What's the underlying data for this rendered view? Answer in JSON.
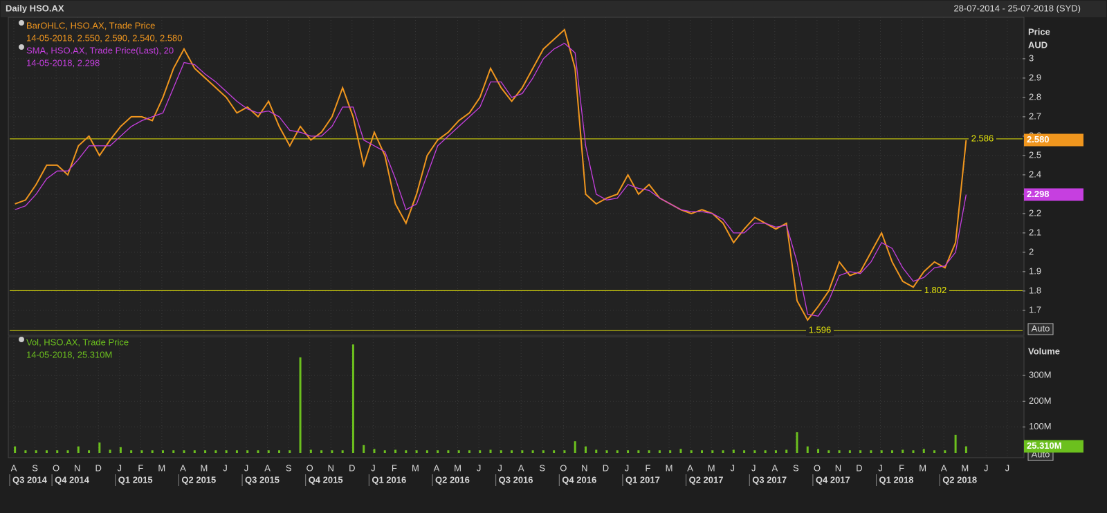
{
  "header": {
    "title": "Daily HSO.AX",
    "range": "28-07-2014 - 25-07-2018 (SYD)"
  },
  "chart_data": [
    {
      "type": "line",
      "y_title": "Price",
      "y_unit": "AUD",
      "grid": true,
      "categories": [
        "A",
        null,
        "S",
        null,
        "O",
        null,
        "N",
        null,
        "D",
        null,
        "J",
        null,
        "F",
        null,
        "M",
        null,
        "A",
        null,
        "M",
        null,
        "J",
        null,
        "J",
        null,
        "A",
        null,
        "S",
        null,
        "O",
        null,
        "N",
        null,
        "D",
        null,
        "J",
        null,
        "F",
        null,
        "M",
        null,
        "A",
        null,
        "M",
        null,
        "J",
        null,
        "J",
        null,
        "A",
        null,
        "S",
        null,
        "O",
        null,
        "N",
        null,
        "D",
        null,
        "J",
        null,
        "F",
        null,
        "M",
        null,
        "A",
        null,
        "M",
        null,
        "J",
        null,
        "J",
        null,
        "A",
        null,
        "S",
        null,
        "O",
        null,
        "N",
        null,
        "D",
        null,
        "J",
        null,
        "F",
        null,
        "M",
        null,
        "A",
        null,
        "M",
        null,
        "J",
        null,
        "J",
        null
      ],
      "quarters": [
        "Q3 2014",
        "Q4 2014",
        "Q1 2015",
        "Q2 2015",
        "Q3 2015",
        "Q4 2015",
        "Q1 2016",
        "Q2 2016",
        "Q3 2016",
        "Q4 2016",
        "Q1 2017",
        "Q2 2017",
        "Q3 2017",
        "Q4 2017",
        "Q1 2018",
        "Q2 2018"
      ],
      "ylim": [
        1.571,
        3.214
      ],
      "yticks": [
        1.7,
        1.8,
        1.9,
        2,
        2.1,
        2.2,
        2.3,
        2.4,
        2.5,
        2.6,
        2.7,
        2.8,
        2.9,
        3
      ],
      "levels": [
        2.586,
        1.802,
        1.596
      ],
      "level_color": "#e6e60a",
      "series": [
        {
          "name": "BarOHLC, HSO.AX, Trade Price",
          "detail": "14-05-2018, 2.550, 2.590, 2.540, 2.580",
          "color": "#f0961e",
          "last_value": {
            "value": 2.58,
            "label": "2.580"
          },
          "values": [
            2.25,
            2.27,
            2.35,
            2.45,
            2.45,
            2.4,
            2.55,
            2.6,
            2.5,
            2.58,
            2.65,
            2.7,
            2.7,
            2.68,
            2.8,
            2.95,
            3.05,
            2.95,
            2.9,
            2.85,
            2.8,
            2.72,
            2.75,
            2.7,
            2.78,
            2.65,
            2.55,
            2.65,
            2.58,
            2.62,
            2.7,
            2.85,
            2.7,
            2.45,
            2.62,
            2.5,
            2.25,
            2.15,
            2.3,
            2.5,
            2.58,
            2.62,
            2.68,
            2.72,
            2.8,
            2.95,
            2.85,
            2.78,
            2.85,
            2.95,
            3.05,
            3.1,
            3.15,
            2.95,
            2.3,
            2.25,
            2.28,
            2.3,
            2.4,
            2.3,
            2.35,
            2.28,
            2.25,
            2.22,
            2.2,
            2.22,
            2.2,
            2.15,
            2.05,
            2.12,
            2.18,
            2.15,
            2.12,
            2.15,
            1.75,
            1.65,
            1.72,
            1.8,
            1.95,
            1.88,
            1.9,
            2.0,
            2.1,
            1.95,
            1.85,
            1.82,
            1.9,
            1.95,
            1.92,
            2.05,
            2.58,
            null,
            null,
            null,
            null,
            null
          ]
        },
        {
          "name": "SMA, HSO.AX, Trade Price(Last),  20",
          "detail": "14-05-2018, 2.298",
          "color": "#c63fe0",
          "last_value": 2.298,
          "values": [
            2.22,
            2.24,
            2.3,
            2.38,
            2.42,
            2.42,
            2.48,
            2.55,
            2.55,
            2.55,
            2.6,
            2.65,
            2.68,
            2.7,
            2.72,
            2.85,
            2.98,
            2.97,
            2.92,
            2.88,
            2.83,
            2.78,
            2.74,
            2.72,
            2.73,
            2.7,
            2.63,
            2.62,
            2.6,
            2.6,
            2.65,
            2.75,
            2.75,
            2.58,
            2.55,
            2.52,
            2.38,
            2.22,
            2.25,
            2.4,
            2.55,
            2.6,
            2.65,
            2.7,
            2.75,
            2.88,
            2.88,
            2.8,
            2.82,
            2.9,
            3.0,
            3.05,
            3.08,
            3.03,
            2.55,
            2.3,
            2.27,
            2.28,
            2.35,
            2.33,
            2.32,
            2.28,
            2.25,
            2.22,
            2.21,
            2.21,
            2.2,
            2.17,
            2.1,
            2.1,
            2.15,
            2.15,
            2.13,
            2.14,
            1.95,
            1.68,
            1.67,
            1.75,
            1.88,
            1.9,
            1.89,
            1.95,
            2.05,
            2.02,
            1.92,
            1.85,
            1.87,
            1.92,
            1.93,
            2.0,
            2.298,
            null,
            null,
            null,
            null,
            null
          ]
        }
      ]
    },
    {
      "type": "bar",
      "y_title": "Volume",
      "grid": true,
      "ylim": [
        0,
        450
      ],
      "yticks": [
        {
          "value": 100,
          "label": "100M"
        },
        {
          "value": 200,
          "label": "200M"
        },
        {
          "value": 300,
          "label": "300M"
        }
      ],
      "series": [
        {
          "name": "Vol, HSO.AX, Trade Price",
          "detail": "14-05-2018, 25.310M",
          "color": "#6cc01e",
          "last_value": {
            "value": 25.31,
            "label": "25.310M"
          },
          "values": [
            25,
            10,
            10,
            10,
            10,
            10,
            25,
            10,
            40,
            12,
            22,
            10,
            10,
            10,
            10,
            10,
            10,
            10,
            10,
            10,
            10,
            10,
            10,
            10,
            10,
            10,
            10,
            370,
            12,
            10,
            10,
            10,
            420,
            30,
            15,
            10,
            12,
            10,
            10,
            10,
            10,
            10,
            10,
            10,
            10,
            12,
            10,
            10,
            10,
            10,
            10,
            10,
            10,
            45,
            25,
            12,
            10,
            10,
            10,
            10,
            10,
            10,
            10,
            15,
            10,
            10,
            10,
            10,
            12,
            10,
            10,
            10,
            10,
            12,
            80,
            25,
            15,
            10,
            10,
            10,
            10,
            10,
            10,
            10,
            12,
            10,
            15,
            10,
            10,
            70,
            25.31,
            null,
            null,
            null,
            null,
            null
          ]
        }
      ]
    }
  ],
  "controls": {
    "auto_price": "Auto",
    "auto_volume": "Auto"
  }
}
